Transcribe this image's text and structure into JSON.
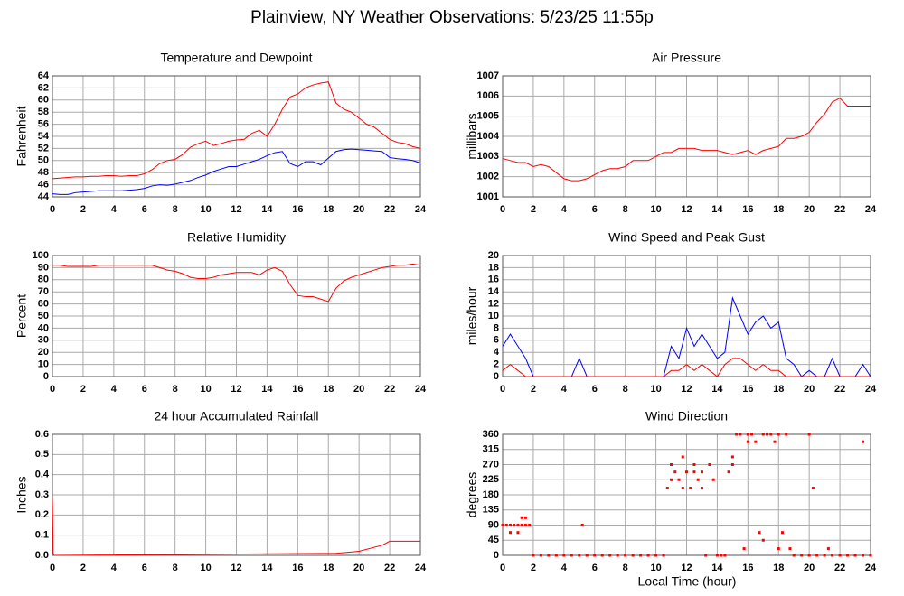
{
  "title": "Plainview, NY Weather Observations: 5/23/25 11:55p",
  "xlabel": "Local Time (hour)",
  "chart_data": [
    {
      "type": "line",
      "title": "Temperature and Dewpoint",
      "ylabel": "Fahrenheit",
      "grid": true,
      "xlim": [
        0,
        24
      ],
      "xticks": [
        0,
        2,
        4,
        6,
        8,
        10,
        12,
        14,
        16,
        18,
        20,
        22,
        24
      ],
      "ylim": [
        44,
        64
      ],
      "yticks": [
        44,
        46,
        48,
        50,
        52,
        54,
        56,
        58,
        60,
        62,
        64
      ],
      "x": [
        0,
        0.5,
        1,
        1.5,
        2,
        2.5,
        3,
        3.5,
        4,
        4.5,
        5,
        5.5,
        6,
        6.5,
        7,
        7.5,
        8,
        8.5,
        9,
        9.5,
        10,
        10.5,
        11,
        11.5,
        12,
        12.5,
        13,
        13.5,
        14,
        14.5,
        15,
        15.5,
        16,
        16.5,
        17,
        17.5,
        18,
        18.5,
        19,
        19.5,
        20,
        20.5,
        21,
        21.5,
        22,
        22.5,
        23,
        23.5,
        24
      ],
      "series": [
        {
          "color": "#ff0000",
          "values": [
            47,
            47.1,
            47.2,
            47.3,
            47.3,
            47.4,
            47.4,
            47.5,
            47.5,
            47.4,
            47.5,
            47.5,
            47.8,
            48.5,
            49.5,
            50,
            50.2,
            51,
            52.2,
            52.8,
            53.2,
            52.5,
            52.8,
            53.2,
            53.4,
            53.5,
            54.5,
            55,
            54,
            56,
            58.5,
            60.5,
            61,
            62,
            62.5,
            62.8,
            63,
            59.5,
            58.5,
            58,
            57,
            56,
            55.5,
            54.5,
            53.5,
            53,
            52.8,
            52.3,
            52
          ]
        },
        {
          "color": "#0000ff",
          "values": [
            44.5,
            44.4,
            44.4,
            44.7,
            44.8,
            44.9,
            45,
            45,
            45,
            45,
            45.1,
            45.2,
            45.4,
            45.8,
            46,
            45.9,
            46.1,
            46.4,
            46.7,
            47.2,
            47.6,
            48.2,
            48.6,
            49,
            49,
            49.4,
            49.8,
            50.2,
            50.8,
            51.3,
            51.5,
            49.5,
            49,
            49.8,
            49.8,
            49.3,
            50.4,
            51.5,
            51.8,
            51.9,
            51.8,
            51.7,
            51.6,
            51.5,
            50.5,
            50.3,
            50.2,
            50,
            49.6
          ]
        }
      ]
    },
    {
      "type": "line",
      "title": "Air Pressure",
      "ylabel": "millibars",
      "grid": true,
      "xlim": [
        0,
        24
      ],
      "xticks": [
        0,
        2,
        4,
        6,
        8,
        10,
        12,
        14,
        16,
        18,
        20,
        22,
        24
      ],
      "ylim": [
        1001,
        1007
      ],
      "yticks": [
        1001,
        1002,
        1003,
        1004,
        1005,
        1006,
        1007
      ],
      "x": [
        0,
        0.5,
        1,
        1.5,
        2,
        2.5,
        3,
        3.5,
        4,
        4.5,
        5,
        5.5,
        6,
        6.5,
        7,
        7.5,
        8,
        8.5,
        9,
        9.5,
        10,
        10.5,
        11,
        11.5,
        12,
        12.5,
        13,
        13.5,
        14,
        14.5,
        15,
        15.5,
        16,
        16.5,
        17,
        17.5,
        18,
        18.5,
        19,
        19.5,
        20,
        20.5,
        21,
        21.5,
        22,
        22.5,
        23,
        23.5,
        24
      ],
      "series": [
        {
          "color": "#ff0000",
          "values": [
            1002.9,
            1002.8,
            1002.7,
            1002.7,
            1002.5,
            1002.6,
            1002.5,
            1002.2,
            1001.9,
            1001.8,
            1001.8,
            1001.9,
            1002.1,
            1002.3,
            1002.4,
            1002.4,
            1002.5,
            1002.8,
            1002.8,
            1002.8,
            1003,
            1003.2,
            1003.2,
            1003.4,
            1003.4,
            1003.4,
            1003.3,
            1003.3,
            1003.3,
            1003.2,
            1003.1,
            1003.2,
            1003.3,
            1003.1,
            1003.3,
            1003.4,
            1003.5,
            1003.9,
            1003.9,
            1004,
            1004.2,
            1004.7,
            1005.1,
            1005.7,
            1005.9,
            1005.5,
            1005.5,
            1005.5,
            1005.5
          ]
        }
      ]
    },
    {
      "type": "line",
      "title": "Relative Humidity",
      "ylabel": "Percent",
      "grid": true,
      "xlim": [
        0,
        24
      ],
      "xticks": [
        0,
        2,
        4,
        6,
        8,
        10,
        12,
        14,
        16,
        18,
        20,
        22,
        24
      ],
      "ylim": [
        0,
        100
      ],
      "yticks": [
        0,
        10,
        20,
        30,
        40,
        50,
        60,
        70,
        80,
        90,
        100
      ],
      "x": [
        0,
        0.5,
        1,
        1.5,
        2,
        2.5,
        3,
        3.5,
        4,
        4.5,
        5,
        5.5,
        6,
        6.5,
        7,
        7.5,
        8,
        8.5,
        9,
        9.5,
        10,
        10.5,
        11,
        11.5,
        12,
        12.5,
        13,
        13.5,
        14,
        14.5,
        15,
        15.5,
        16,
        16.5,
        17,
        17.5,
        18,
        18.5,
        19,
        19.5,
        20,
        20.5,
        21,
        21.5,
        22,
        22.5,
        23,
        23.5,
        24
      ],
      "series": [
        {
          "color": "#ff0000",
          "values": [
            92,
            92,
            91,
            91,
            91,
            91,
            92,
            92,
            92,
            92,
            92,
            92,
            92,
            92,
            90,
            88,
            87,
            85,
            82,
            81,
            81,
            82,
            84,
            85,
            86,
            86,
            86,
            84,
            88,
            90,
            87,
            76,
            67,
            66,
            66,
            64,
            62,
            73,
            79,
            82,
            84,
            86,
            88,
            90,
            91,
            92,
            92,
            93,
            92
          ]
        }
      ]
    },
    {
      "type": "line",
      "title": "Wind Speed and Peak Gust",
      "ylabel": "miles/hour",
      "grid": true,
      "xlim": [
        0,
        24
      ],
      "xticks": [
        0,
        2,
        4,
        6,
        8,
        10,
        12,
        14,
        16,
        18,
        20,
        22,
        24
      ],
      "ylim": [
        0,
        20
      ],
      "yticks": [
        0,
        2,
        4,
        6,
        8,
        10,
        12,
        14,
        16,
        18,
        20
      ],
      "x": [
        0,
        0.5,
        1,
        1.5,
        2,
        2.5,
        3,
        3.5,
        4,
        4.5,
        5,
        5.5,
        6,
        6.5,
        7,
        7.5,
        8,
        8.5,
        9,
        9.5,
        10,
        10.5,
        11,
        11.5,
        12,
        12.5,
        13,
        13.5,
        14,
        14.5,
        15,
        15.5,
        16,
        16.5,
        17,
        17.5,
        18,
        18.5,
        19,
        19.5,
        20,
        20.5,
        21,
        21.5,
        22,
        22.5,
        23,
        23.5,
        24
      ],
      "series": [
        {
          "color": "#0000ff",
          "values": [
            5,
            7,
            5,
            3,
            0,
            0,
            0,
            0,
            0,
            0,
            3,
            0,
            0,
            0,
            0,
            0,
            0,
            0,
            0,
            0,
            0,
            0,
            5,
            3,
            8,
            5,
            7,
            5,
            3,
            4,
            13,
            10,
            7,
            9,
            10,
            8,
            9,
            3,
            2,
            0,
            1,
            0,
            0,
            3,
            0,
            0,
            0,
            2,
            0
          ]
        },
        {
          "color": "#ff0000",
          "values": [
            1,
            2,
            1,
            0,
            0,
            0,
            0,
            0,
            0,
            0,
            0,
            0,
            0,
            0,
            0,
            0,
            0,
            0,
            0,
            0,
            0,
            0,
            1,
            1,
            2,
            1,
            2,
            1,
            0,
            2,
            3,
            3,
            2,
            1,
            2,
            1,
            1,
            0,
            0,
            0,
            0,
            0,
            0,
            0,
            0,
            0,
            0,
            0,
            0
          ]
        }
      ]
    },
    {
      "type": "line",
      "title": "24 hour Accumulated Rainfall",
      "ylabel": "Inches",
      "grid": true,
      "xlim": [
        0,
        24
      ],
      "xticks": [
        0,
        2,
        4,
        6,
        8,
        10,
        12,
        14,
        16,
        18,
        20,
        22,
        24
      ],
      "ylim": [
        0,
        0.6
      ],
      "yticks": [
        {
          "value": 0,
          "label": "0.0"
        },
        0.1,
        0.2,
        0.3,
        0.4,
        0.5,
        0.6
      ],
      "x": [
        0,
        0.05,
        0.1,
        18.5,
        20,
        21.5,
        22,
        24
      ],
      "series": [
        {
          "color": "#ff0000",
          "values": [
            0.28,
            0.01,
            0,
            0.01,
            0.02,
            0.05,
            0.07,
            0.07
          ]
        }
      ]
    },
    {
      "type": "scatter",
      "title": "Wind Direction",
      "ylabel": "degrees",
      "grid": true,
      "xlim": [
        0,
        24
      ],
      "xticks": [
        0,
        2,
        4,
        6,
        8,
        10,
        12,
        14,
        16,
        18,
        20,
        22,
        24
      ],
      "ylim": [
        0,
        360
      ],
      "yticks": [
        0,
        45,
        90,
        135,
        180,
        225,
        270,
        315,
        360
      ],
      "color": "#ff0000",
      "x": [
        0,
        0.25,
        0.5,
        0.75,
        1,
        1.25,
        1.5,
        0.5,
        1,
        1.25,
        1.5,
        1.75,
        2,
        2.5,
        3,
        3.5,
        4,
        4.5,
        5,
        5.5,
        6,
        6.5,
        7,
        7.5,
        8,
        8.5,
        9,
        9.5,
        10,
        10.5,
        5.2,
        10.75,
        11,
        11,
        11.25,
        11.5,
        11.75,
        11.75,
        12,
        12.25,
        12.5,
        12.5,
        12.75,
        13,
        13,
        13.25,
        13.5,
        13.75,
        14,
        14.25,
        14.5,
        14.75,
        15,
        15,
        15.25,
        15.5,
        15.75,
        16,
        16,
        16.25,
        16.5,
        16.75,
        17,
        17,
        17.25,
        17.5,
        17.75,
        18,
        18,
        18.25,
        18.5,
        18.75,
        19,
        19.5,
        20,
        20,
        20.25,
        20.5,
        21,
        21.25,
        21.5,
        22,
        22.5,
        23,
        23.5,
        23.5,
        24
      ],
      "values": [
        90,
        90,
        90,
        90,
        90,
        90,
        90,
        68,
        68,
        112,
        112,
        90,
        0,
        0,
        0,
        0,
        0,
        0,
        0,
        0,
        0,
        0,
        0,
        0,
        0,
        0,
        0,
        0,
        0,
        0,
        90,
        200,
        225,
        270,
        248,
        225,
        200,
        293,
        248,
        200,
        270,
        248,
        225,
        248,
        200,
        0,
        270,
        225,
        0,
        0,
        0,
        248,
        270,
        293,
        360,
        360,
        20,
        338,
        360,
        360,
        338,
        68,
        45,
        360,
        360,
        360,
        338,
        20,
        360,
        68,
        360,
        20,
        0,
        0,
        360,
        0,
        200,
        0,
        0,
        20,
        0,
        0,
        0,
        0,
        338,
        0,
        0
      ]
    }
  ]
}
